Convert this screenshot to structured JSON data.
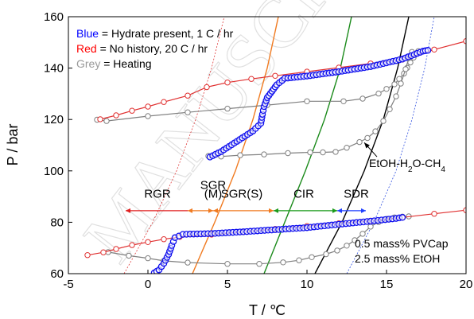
{
  "chart_data": {
    "type": "scatter",
    "xlabel": "T / ℃",
    "ylabel": "P / bar",
    "xlim": [
      -5,
      20
    ],
    "ylim": [
      60,
      160
    ],
    "xticks": [
      "-5",
      "0",
      "5",
      "10",
      "15",
      "20"
    ],
    "yticks": [
      "60",
      "80",
      "100",
      "120",
      "140",
      "160"
    ],
    "grid": false,
    "legend_position": "top-left",
    "legend": [
      {
        "key": "Blue",
        "text": " = Hydrate present, 1 C / hr",
        "color": "#0000ff"
      },
      {
        "key": "Red",
        "text": " = No history, 20 C / hr",
        "color": "#ff0000"
      },
      {
        "key": "Grey",
        "text": " = Heating",
        "color": "#999999"
      }
    ],
    "watermark": "MANUSCRIPT",
    "region_labels": [
      {
        "text": "RGR",
        "x": 0.6,
        "y": 89.5
      },
      {
        "text": "SGR",
        "x": 4.1,
        "y": 93
      },
      {
        "text": "(M)",
        "x": 4.1,
        "y": 89.5
      },
      {
        "text": "SGR(S)",
        "x": 5.9,
        "y": 89.5
      },
      {
        "text": "CIR",
        "x": 9.8,
        "y": 89.5
      },
      {
        "text": "SDR",
        "x": 13.1,
        "y": 89.5
      }
    ],
    "region_arrows": [
      {
        "x1": -1.4,
        "x2": 2.5,
        "color": "#e02020",
        "heads": "left"
      },
      {
        "x1": 2.5,
        "x2": 4.1,
        "color": "#f07a20",
        "heads": "both"
      },
      {
        "x1": 4.1,
        "x2": 7.9,
        "color": "#f07a20",
        "heads": "both"
      },
      {
        "x1": 7.9,
        "x2": 11.9,
        "color": "#1a9a1a",
        "heads": "both"
      },
      {
        "x1": 11.9,
        "x2": 13.7,
        "color": "#2040ff",
        "heads": "both"
      }
    ],
    "region_arrow_y": 84.5,
    "annotation": {
      "text": "EtOH-H",
      "sub1": "2",
      "mid": "O-CH",
      "sub2": "4",
      "x_text": 13.9,
      "y_text": 101.5,
      "arrow_from": [
        14.4,
        105.5
      ],
      "arrow_to": [
        13.6,
        111
      ]
    },
    "notes": [
      "0.5 mass% PVCap",
      "2.5 mass% EtOH"
    ],
    "curves": [
      {
        "name": "",
        "color": "#e03a3a",
        "dashed": true,
        "width": 0.8,
        "points": [
          [
            -1.5,
            60
          ],
          [
            0.3,
            80
          ],
          [
            1.8,
            100
          ],
          [
            3.0,
            120
          ],
          [
            4.0,
            140
          ],
          [
            4.8,
            160
          ]
        ]
      },
      {
        "name": "",
        "color": "#f07a20",
        "dashed": false,
        "width": 1.4,
        "points": [
          [
            2.8,
            60
          ],
          [
            4.2,
            80
          ],
          [
            5.5,
            100
          ],
          [
            6.6,
            120
          ],
          [
            7.5,
            140
          ],
          [
            8.2,
            160
          ]
        ]
      },
      {
        "name": "",
        "color": "#1a8a1a",
        "dashed": false,
        "width": 1.4,
        "points": [
          [
            7.3,
            60
          ],
          [
            8.6,
            80
          ],
          [
            9.9,
            100
          ],
          [
            11.1,
            120
          ],
          [
            12.1,
            140
          ],
          [
            12.8,
            160
          ]
        ]
      },
      {
        "name": "",
        "color": "#000000",
        "dashed": false,
        "width": 1.4,
        "points": [
          [
            10.5,
            60
          ],
          [
            12.2,
            80
          ],
          [
            13.6,
            100
          ],
          [
            14.8,
            120
          ],
          [
            15.7,
            140
          ],
          [
            16.4,
            160
          ]
        ]
      },
      {
        "name": "",
        "color": "#3050e0",
        "dashed": true,
        "width": 0.8,
        "points": [
          [
            12.5,
            60
          ],
          [
            14.2,
            80
          ],
          [
            15.6,
            100
          ],
          [
            16.6,
            120
          ],
          [
            17.4,
            140
          ],
          [
            18.0,
            160
          ]
        ]
      }
    ],
    "series": [
      {
        "name": "Red",
        "color": "#e03030",
        "points": [
          [
            -3.8,
            67.2
          ],
          [
            -2.8,
            68.3
          ],
          [
            -2.0,
            69.6
          ],
          [
            -1.0,
            71.1
          ],
          [
            0.0,
            72.3
          ],
          [
            1.0,
            73.4
          ],
          [
            2.0,
            74.3
          ],
          [
            4.0,
            75.2
          ],
          [
            6.0,
            76.3
          ],
          [
            8.0,
            77.4
          ],
          [
            10.0,
            78.5
          ],
          [
            12.0,
            79.6
          ],
          [
            14.0,
            80.6
          ],
          [
            16.0,
            81.9
          ],
          [
            18.0,
            83.3
          ],
          [
            20.0,
            84.7
          ]
        ]
      },
      {
        "name": "Red",
        "color": "#e03030",
        "points": [
          [
            -3.0,
            120.1
          ],
          [
            -2.0,
            121.6
          ],
          [
            -1.0,
            123.4
          ],
          [
            0.0,
            125.0
          ],
          [
            1.0,
            126.8
          ],
          [
            2.5,
            129.3
          ],
          [
            3.7,
            132.6
          ],
          [
            5.0,
            134.4
          ],
          [
            6.5,
            135.8
          ],
          [
            8.0,
            137.0
          ],
          [
            10.0,
            138.6
          ],
          [
            12.0,
            140.2
          ],
          [
            14.0,
            141.8
          ],
          [
            16.0,
            143.3
          ],
          [
            18.0,
            147.2
          ],
          [
            20.0,
            150.5
          ]
        ]
      },
      {
        "name": "Blue",
        "color": "#1010ee",
        "points": []
      },
      {
        "name": "Grey",
        "color": "#808080",
        "points": [
          [
            -2.5,
            68.4
          ],
          [
            -1.2,
            67.0
          ],
          [
            0.0,
            66.0
          ],
          [
            1.0,
            65.0
          ],
          [
            2.5,
            64.3
          ],
          [
            5.0,
            63.8
          ],
          [
            7.0,
            63.8
          ],
          [
            8.5,
            64.4
          ],
          [
            9.5,
            65.2
          ],
          [
            10.3,
            66.4
          ],
          [
            11.2,
            67.6
          ],
          [
            11.9,
            69.0
          ],
          [
            12.5,
            70.9
          ],
          [
            13.0,
            73.0
          ],
          [
            13.5,
            75.5
          ],
          [
            14.0,
            78.3
          ],
          [
            14.5,
            80.1
          ],
          [
            15.0,
            81.3
          ],
          [
            15.5,
            81.9
          ],
          [
            16.0,
            82.2
          ],
          [
            16.4,
            82.3
          ]
        ]
      },
      {
        "name": "Grey",
        "color": "#808080",
        "points": [
          [
            -3.2,
            119.9
          ],
          [
            -2.6,
            119.4
          ],
          [
            0.0,
            121.3
          ],
          [
            2.5,
            122.8
          ],
          [
            5.0,
            124.2
          ],
          [
            7.5,
            125.6
          ],
          [
            10.0,
            127.1
          ],
          [
            12.3,
            127.1
          ],
          [
            13.5,
            128.1
          ],
          [
            14.5,
            130.1
          ],
          [
            15.0,
            131.9
          ],
          [
            15.5,
            133.7
          ],
          [
            15.8,
            135.8
          ],
          [
            16.1,
            137.9
          ],
          [
            16.3,
            140.1
          ],
          [
            16.5,
            142.2
          ],
          [
            16.7,
            144.1
          ],
          [
            16.9,
            145.7
          ],
          [
            17.0,
            146.6
          ]
        ]
      },
      {
        "name": "Grey",
        "color": "#808080",
        "points": [
          [
            3.8,
            105.8
          ],
          [
            4.6,
            105.6
          ],
          [
            5.8,
            106.1
          ],
          [
            7.3,
            106.4
          ],
          [
            8.8,
            106.9
          ],
          [
            10.2,
            107.2
          ],
          [
            11.0,
            107.2
          ],
          [
            11.8,
            107.4
          ],
          [
            12.5,
            109.0
          ],
          [
            13.3,
            111.2
          ],
          [
            13.8,
            112.8
          ],
          [
            14.3,
            115.4
          ],
          [
            14.8,
            119.4
          ],
          [
            15.2,
            124.0
          ],
          [
            15.6,
            129.0
          ],
          [
            15.9,
            134.0
          ],
          [
            16.2,
            139.6
          ],
          [
            16.4,
            143.9
          ],
          [
            16.6,
            146.3
          ]
        ]
      }
    ]
  }
}
